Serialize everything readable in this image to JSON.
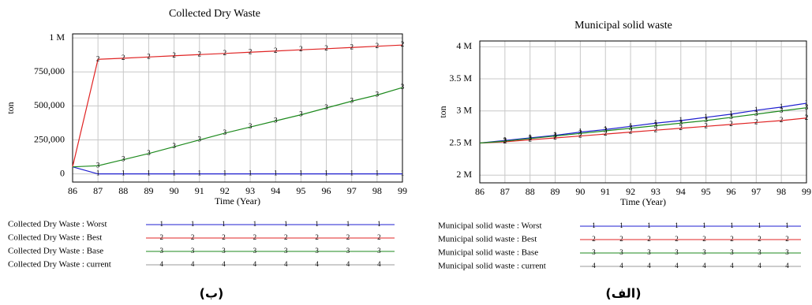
{
  "chart_data": [
    {
      "type": "line",
      "title": "Collected Dry Waste",
      "xlabel": "Time (Year)",
      "ylabel": "ton",
      "caption": "(ب)",
      "x": [
        86,
        87,
        88,
        89,
        90,
        91,
        92,
        93,
        94,
        95,
        96,
        97,
        98,
        99
      ],
      "xlim": [
        86,
        99
      ],
      "xticks": [
        86,
        87,
        88,
        89,
        90,
        91,
        92,
        93,
        94,
        95,
        96,
        97,
        98,
        99
      ],
      "ylim": [
        -60000,
        1030000
      ],
      "yticks": [
        0,
        {
          "value": 250000,
          "label": "250,000"
        },
        {
          "value": 500000,
          "label": "500,000"
        },
        {
          "value": 750000,
          "label": "750,000"
        },
        {
          "value": 1000000,
          "label": "1 M"
        }
      ],
      "grid": true,
      "series": [
        {
          "name": "Collected Dry Waste : Worst",
          "marker": "1",
          "color": "#1f1fd0",
          "values": [
            52000,
            0,
            0,
            0,
            0,
            0,
            0,
            0,
            0,
            0,
            0,
            0,
            0,
            0
          ]
        },
        {
          "name": "Collected Dry Waste : Best",
          "marker": "2",
          "color": "#e02424",
          "values": [
            52000,
            843000,
            851000,
            860000,
            869000,
            878000,
            886000,
            895000,
            904000,
            913000,
            921000,
            930000,
            939000,
            948000
          ]
        },
        {
          "name": "Collected Dry Waste : Base",
          "marker": "3",
          "color": "#1e8a1e",
          "values": [
            52000,
            60000,
            105000,
            150000,
            200000,
            250000,
            300000,
            345000,
            390000,
            435000,
            485000,
            535000,
            580000,
            635000
          ]
        },
        {
          "name": "Collected Dry Waste : current",
          "marker": "4",
          "color": "#999999",
          "values": [
            null,
            null,
            null,
            null,
            null,
            null,
            null,
            null,
            null,
            null,
            null,
            null,
            null,
            null
          ]
        }
      ]
    },
    {
      "type": "line",
      "title": "Municipal solid waste",
      "xlabel": "Time (Year)",
      "ylabel": "ton",
      "caption": "(الف)",
      "x": [
        86,
        87,
        88,
        89,
        90,
        91,
        92,
        93,
        94,
        95,
        96,
        97,
        98,
        99
      ],
      "xlim": [
        86,
        99
      ],
      "xticks": [
        86,
        87,
        88,
        89,
        90,
        91,
        92,
        93,
        94,
        95,
        96,
        97,
        98,
        99
      ],
      "ylim": [
        1880000,
        4090000
      ],
      "yticks": [
        {
          "value": 2000000,
          "label": "2 M"
        },
        {
          "value": 2500000,
          "label": "2.5 M"
        },
        {
          "value": 3000000,
          "label": "3 M"
        },
        {
          "value": 3500000,
          "label": "3.5 M"
        },
        {
          "value": 4000000,
          "label": "4 M"
        }
      ],
      "grid": true,
      "series": [
        {
          "name": "Municipal solid waste : Worst",
          "marker": "1",
          "color": "#1f1fd0",
          "values": [
            2500000,
            2540000,
            2580000,
            2620000,
            2670000,
            2710000,
            2760000,
            2810000,
            2850000,
            2900000,
            2950000,
            3010000,
            3060000,
            3120000
          ]
        },
        {
          "name": "Municipal solid waste : Best",
          "marker": "2",
          "color": "#e02424",
          "values": [
            2500000,
            2520000,
            2550000,
            2580000,
            2610000,
            2640000,
            2670000,
            2700000,
            2730000,
            2760000,
            2790000,
            2820000,
            2850000,
            2890000
          ]
        },
        {
          "name": "Municipal solid waste : Base",
          "marker": "3",
          "color": "#1e8a1e",
          "values": [
            2500000,
            2530000,
            2570000,
            2610000,
            2650000,
            2690000,
            2730000,
            2770000,
            2810000,
            2850000,
            2900000,
            2950000,
            3000000,
            3050000
          ]
        },
        {
          "name": "Municipal solid waste : current",
          "marker": "4",
          "color": "#999999",
          "values": [
            null,
            null,
            null,
            null,
            null,
            null,
            null,
            null,
            null,
            null,
            null,
            null,
            null,
            null
          ]
        }
      ]
    }
  ]
}
